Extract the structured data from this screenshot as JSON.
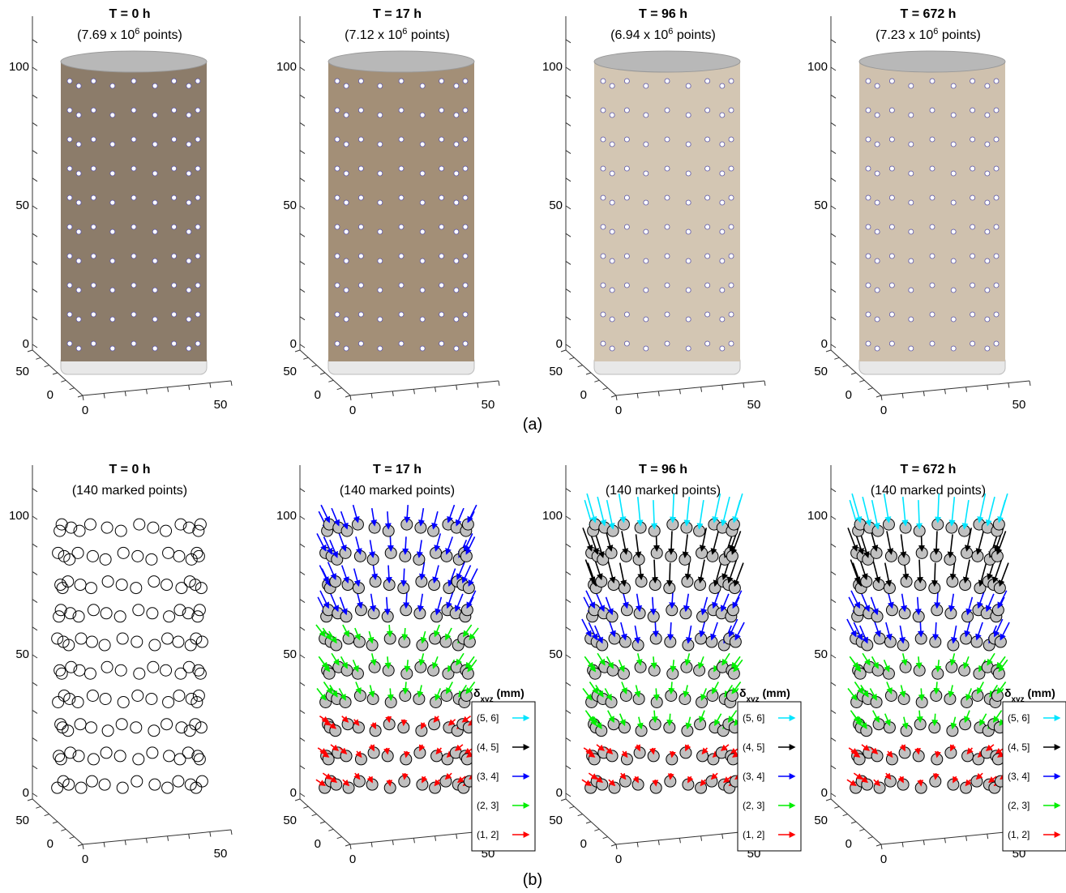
{
  "panels_a": [
    {
      "title": "T = 0 h",
      "count_pre": "(7.69 x 10",
      "count_exp": "6",
      "count_post": " points)",
      "color": "#8c7c6a"
    },
    {
      "title": "T = 17 h",
      "count_pre": "(7.12 x 10",
      "count_exp": "6",
      "count_post": " points)",
      "color": "#a38f77"
    },
    {
      "title": "T = 96 h",
      "count_pre": "(6.94 x 10",
      "count_exp": "6",
      "count_post": " points)",
      "color": "#d3c6b3"
    },
    {
      "title": "T = 672 h",
      "count_pre": "(7.23 x 10",
      "count_exp": "6",
      "count_post": " points)",
      "color": "#cfc1ae"
    }
  ],
  "panels_b": [
    {
      "title": "T = 0 h",
      "subtitle": "(140 marked points)"
    },
    {
      "title": "T = 17 h",
      "subtitle": "(140 marked points)"
    },
    {
      "title": "T = 96 h",
      "subtitle": "(140 marked points)"
    },
    {
      "title": "T = 672 h",
      "subtitle": "(140 marked points)"
    }
  ],
  "axis": {
    "z_ticks": [
      "100",
      "50",
      "0"
    ],
    "floor_y": [
      "50",
      "0"
    ],
    "floor_x": [
      "0",
      "50"
    ]
  },
  "legend": {
    "symbol": "δ",
    "sub": "xyz",
    "unit": " (mm)",
    "entries": [
      {
        "label": "(5, 6]",
        "color": "#00e5ff"
      },
      {
        "label": "(4, 5]",
        "color": "#000000"
      },
      {
        "label": "(3, 4]",
        "color": "#0000ff"
      },
      {
        "label": "(2, 3]",
        "color": "#00ee00"
      },
      {
        "label": "(1, 2]",
        "color": "#ff0000"
      }
    ]
  },
  "labels": {
    "a": "(a)",
    "b": "(b)"
  }
}
